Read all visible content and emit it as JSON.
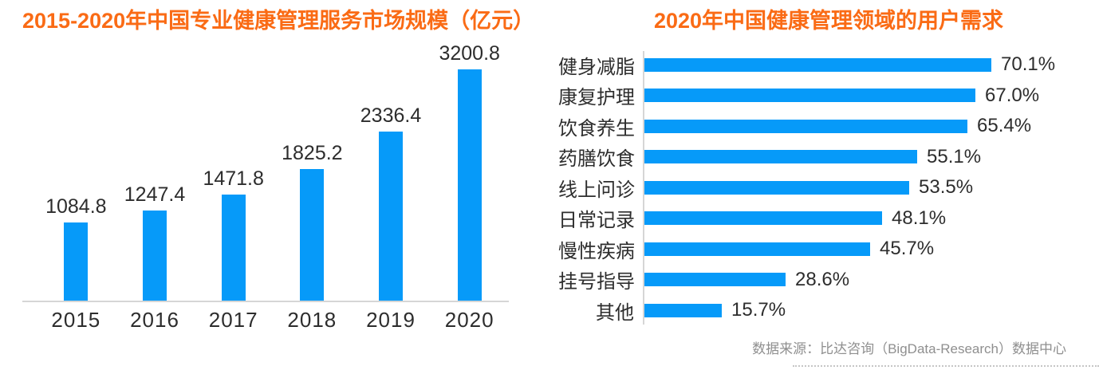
{
  "footer": {
    "source": "数据来源：比达咨询（BigData-Research）数据中心"
  },
  "colors": {
    "bar_blue": "#069af9",
    "title_orange": "#fa6b15",
    "axis_gray": "#d6d6d6",
    "text_dark": "#2d2d2d",
    "source_gray": "#8f8f8f",
    "dot_gray": "#c6c6c6"
  },
  "chart_data": [
    {
      "type": "bar",
      "orientation": "vertical",
      "title": "2015-2020年中国专业健康管理服务市场规模（亿元）",
      "unit": "亿元",
      "categories": [
        "2015",
        "2016",
        "2017",
        "2018",
        "2019",
        "2020"
      ],
      "values": [
        1084.8,
        1247.4,
        1471.8,
        1825.2,
        2336.4,
        3200.8
      ],
      "labels": [
        "1084.8",
        "1247.4",
        "1471.8",
        "1825.2",
        "2336.4",
        "3200.8"
      ],
      "ylim": [
        0,
        3500
      ],
      "grid": false,
      "value_axis_visible": false,
      "value_labels": true,
      "legend": "none"
    },
    {
      "type": "bar",
      "orientation": "horizontal",
      "title": "2020年中国健康管理领域的用户需求",
      "unit": "%",
      "categories": [
        "健身减脂",
        "康复护理",
        "饮食养生",
        "药膳饮食",
        "线上问诊",
        "日常记录",
        "慢性疾病",
        "挂号指导",
        "其他"
      ],
      "values": [
        70.1,
        67.0,
        65.4,
        55.1,
        53.5,
        48.1,
        45.7,
        28.6,
        15.7
      ],
      "labels": [
        "70.1%",
        "67.0%",
        "65.4%",
        "55.1%",
        "53.5%",
        "48.1%",
        "45.7%",
        "28.6%",
        "15.7%"
      ],
      "xlim": [
        0,
        100
      ],
      "grid": false,
      "value_axis_visible": false,
      "value_labels": true,
      "legend": "none"
    }
  ]
}
